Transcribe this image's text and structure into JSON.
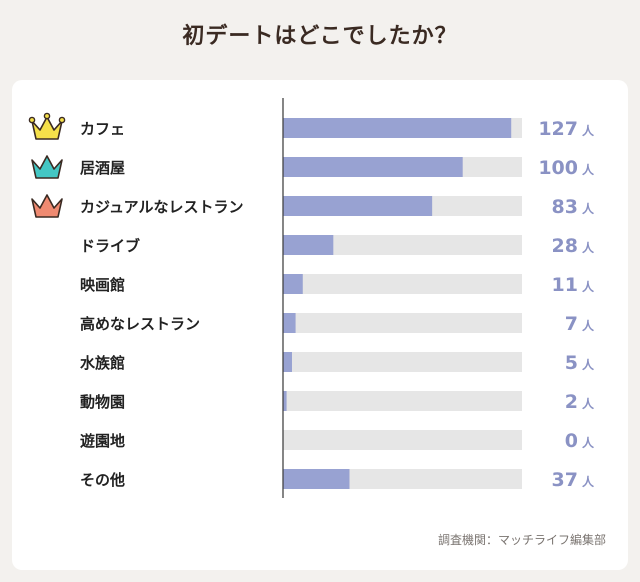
{
  "title": "初デートはどこでしたか？",
  "source": "調査機関：マッチライフ編集部",
  "colors": {
    "bar": "#98a2d2",
    "track": "#e6e6e6",
    "value_text": "#8a92c4",
    "label_text": "#222222",
    "axis": "#444444",
    "crown_gold": "#f5e04a",
    "crown_teal": "#44c7c4",
    "crown_coral": "#ef8a71"
  },
  "chart_data": {
    "type": "bar",
    "orientation": "horizontal",
    "categories": [
      "カフェ",
      "居酒屋",
      "カジュアルなレストラン",
      "ドライブ",
      "映画館",
      "高めなレストラン",
      "水族館",
      "動物園",
      "遊園地",
      "その他"
    ],
    "values": [
      127,
      100,
      83,
      28,
      11,
      7,
      5,
      2,
      0,
      37
    ],
    "unit": "人",
    "xlim": [
      0,
      133
    ],
    "grid": false,
    "rank_icons": [
      "crown-gold-icon",
      "crown-teal-icon",
      "crown-coral-icon"
    ]
  }
}
